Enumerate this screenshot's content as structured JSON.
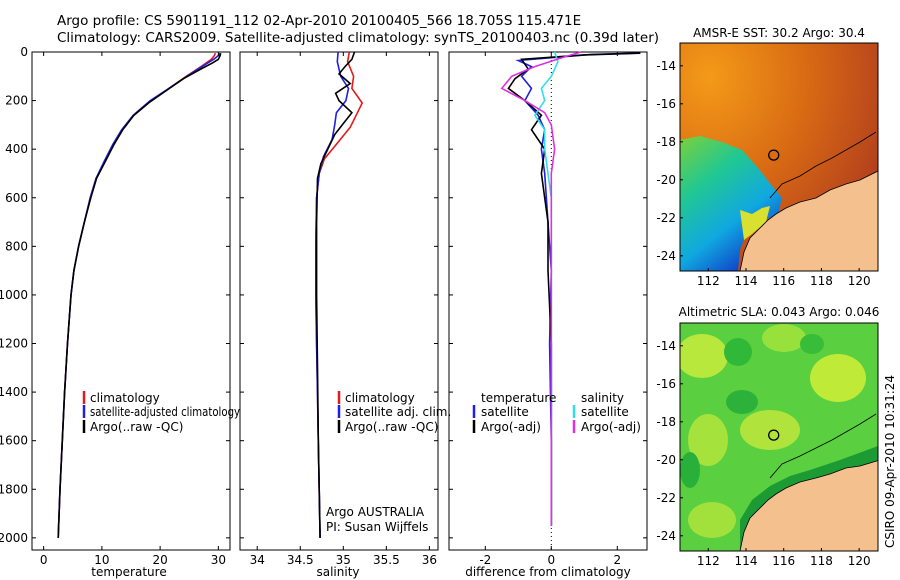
{
  "title_line1": "Argo profile: CS 5901191_112 02-Apr-2010 20100405_566 18.705S 115.471E",
  "title_line2": "Climatology: CARS2009. Satellite-adjusted climatology: synTS_20100403.nc (0.39d later)",
  "credit": "CSIRO 09-Apr-2010 10:31:24",
  "colors": {
    "climatology": "#e41a1c",
    "satellite": "#2020e0",
    "argo": "#000000",
    "sal_satellite": "#30e0e8",
    "sal_argo": "#e030e0"
  },
  "chart_data": [
    {
      "type": "line",
      "name": "temperature-profile",
      "xlabel": "temperature",
      "xlim": [
        -2,
        32
      ],
      "ylim": [
        2050,
        0
      ],
      "xticks": [
        "0",
        "10",
        "20",
        "30"
      ],
      "yticks": [
        "0",
        "200",
        "400",
        "600",
        "800",
        "1000",
        "1200",
        "1400",
        "1600",
        "1800",
        "2000"
      ],
      "legend": [
        "climatology",
        "satellite-adjusted climatology",
        "Argo(..raw -QC)"
      ],
      "series": [
        {
          "name": "climatology",
          "color": "#e41a1c",
          "points": [
            [
              29.5,
              5
            ],
            [
              29.3,
              15
            ],
            [
              28.8,
              30
            ],
            [
              27,
              60
            ],
            [
              24.5,
              100
            ],
            [
              21.5,
              150
            ],
            [
              18.5,
              200
            ],
            [
              15.5,
              260
            ],
            [
              13.5,
              320
            ],
            [
              12,
              380
            ],
            [
              10.5,
              450
            ],
            [
              9,
              520
            ],
            [
              8,
              600
            ],
            [
              7,
              700
            ],
            [
              6,
              800
            ],
            [
              5.2,
              900
            ],
            [
              4.7,
              1000
            ],
            [
              4.1,
              1200
            ],
            [
              3.6,
              1400
            ],
            [
              3.2,
              1600
            ],
            [
              2.8,
              1800
            ],
            [
              2.5,
              2000
            ]
          ]
        },
        {
          "name": "satellite-adjusted climatology",
          "color": "#2020e0",
          "points": [
            [
              30.3,
              5
            ],
            [
              30,
              15
            ],
            [
              29.2,
              30
            ],
            [
              27.2,
              60
            ],
            [
              24.6,
              100
            ],
            [
              21.5,
              150
            ],
            [
              18.3,
              200
            ],
            [
              15.4,
              260
            ],
            [
              13.4,
              320
            ],
            [
              11.9,
              380
            ],
            [
              10.4,
              450
            ],
            [
              9,
              520
            ],
            [
              8,
              600
            ],
            [
              7,
              700
            ],
            [
              6,
              800
            ],
            [
              5.2,
              900
            ],
            [
              4.7,
              1000
            ],
            [
              4.1,
              1200
            ],
            [
              3.6,
              1400
            ],
            [
              3.2,
              1600
            ],
            [
              2.8,
              1800
            ],
            [
              2.5,
              2000
            ]
          ]
        },
        {
          "name": "Argo(..raw -QC)",
          "color": "#000000",
          "points": [
            [
              30.4,
              5
            ],
            [
              30.3,
              15
            ],
            [
              30,
              30
            ],
            [
              29,
              45
            ],
            [
              27,
              70
            ],
            [
              24,
              110
            ],
            [
              21,
              160
            ],
            [
              18,
              210
            ],
            [
              15.5,
              260
            ],
            [
              13.6,
              320
            ],
            [
              12.1,
              380
            ],
            [
              10.6,
              450
            ],
            [
              9.1,
              520
            ],
            [
              8.1,
              600
            ],
            [
              7,
              700
            ],
            [
              6,
              800
            ],
            [
              5.2,
              900
            ],
            [
              4.7,
              1000
            ],
            [
              4.1,
              1200
            ],
            [
              3.6,
              1400
            ],
            [
              3.2,
              1600
            ],
            [
              2.8,
              1800
            ],
            [
              2.5,
              2000
            ]
          ]
        }
      ]
    },
    {
      "type": "line",
      "name": "salinity-profile",
      "xlabel": "salinity",
      "xlim": [
        33.8,
        36.1
      ],
      "ylim": [
        2050,
        0
      ],
      "xticks": [
        "34",
        "34.5",
        "35",
        "35.5",
        "36"
      ],
      "legend": [
        "climatology",
        "satellite adj. clim.",
        "Argo(..raw -QC)"
      ],
      "annotation": [
        "Argo AUSTRALIA",
        "PI: Susan Wijffels"
      ],
      "series": [
        {
          "name": "climatology",
          "color": "#e41a1c",
          "points": [
            [
              35.07,
              0
            ],
            [
              35.05,
              40
            ],
            [
              35.12,
              100
            ],
            [
              35.1,
              150
            ],
            [
              35.22,
              210
            ],
            [
              35.15,
              260
            ],
            [
              35.08,
              310
            ],
            [
              34.92,
              380
            ],
            [
              34.78,
              440
            ],
            [
              34.72,
              500
            ],
            [
              34.69,
              600
            ],
            [
              34.68,
              800
            ],
            [
              34.68,
              1000
            ],
            [
              34.69,
              1200
            ],
            [
              34.7,
              1400
            ],
            [
              34.71,
              1600
            ],
            [
              34.72,
              1800
            ],
            [
              34.73,
              2000
            ]
          ]
        },
        {
          "name": "satellite adj. clim.",
          "color": "#2020e0",
          "points": [
            [
              34.94,
              0
            ],
            [
              34.93,
              40
            ],
            [
              34.97,
              100
            ],
            [
              35.06,
              150
            ],
            [
              35.03,
              200
            ],
            [
              34.92,
              250
            ],
            [
              34.9,
              300
            ],
            [
              34.87,
              360
            ],
            [
              34.77,
              430
            ],
            [
              34.72,
              500
            ],
            [
              34.69,
              600
            ],
            [
              34.68,
              800
            ],
            [
              34.68,
              1000
            ],
            [
              34.69,
              1200
            ],
            [
              34.7,
              1400
            ],
            [
              34.71,
              1600
            ],
            [
              34.72,
              1800
            ],
            [
              34.73,
              2000
            ]
          ]
        },
        {
          "name": "Argo(..raw -QC)",
          "color": "#000000",
          "points": [
            [
              35.13,
              0
            ],
            [
              35.1,
              30
            ],
            [
              35.02,
              60
            ],
            [
              34.95,
              90
            ],
            [
              35.08,
              130
            ],
            [
              34.91,
              170
            ],
            [
              34.95,
              200
            ],
            [
              35.1,
              250
            ],
            [
              35.01,
              290
            ],
            [
              34.9,
              340
            ],
            [
              34.82,
              400
            ],
            [
              34.74,
              460
            ],
            [
              34.7,
              520
            ],
            [
              34.69,
              700
            ],
            [
              34.69,
              1000
            ],
            [
              34.7,
              1300
            ],
            [
              34.71,
              1600
            ],
            [
              34.72,
              1800
            ],
            [
              34.73,
              2000
            ]
          ]
        }
      ]
    },
    {
      "type": "line",
      "name": "difference-profile",
      "xlabel": "difference from climatology",
      "xlim": [
        -3.1,
        2.9
      ],
      "ylim": [
        2050,
        0
      ],
      "xticks": [
        "-2",
        "0",
        "2"
      ],
      "legend_temperature": {
        "heading": "temperature",
        "items": [
          "satellite",
          "Argo(-adj)"
        ]
      },
      "legend_salinity": {
        "heading": "salinity",
        "items": [
          "satellite",
          "Argo(-adj)"
        ]
      },
      "series": [
        {
          "name": "temperature satellite",
          "color": "#2020e0",
          "points": [
            [
              2.6,
              5
            ],
            [
              1.2,
              10
            ],
            [
              -1,
              35
            ],
            [
              -0.6,
              60
            ],
            [
              -0.9,
              100
            ],
            [
              -0.6,
              150
            ],
            [
              -0.8,
              200
            ],
            [
              -0.4,
              260
            ],
            [
              -0.2,
              320
            ],
            [
              -0.3,
              400
            ],
            [
              -0.2,
              500
            ],
            [
              -0.1,
              700
            ],
            [
              0,
              900
            ],
            [
              -0.05,
              1200
            ],
            [
              0,
              1600
            ],
            [
              0,
              1950
            ]
          ]
        },
        {
          "name": "temperature Argo(-adj)",
          "color": "#000000",
          "points": [
            [
              2.7,
              5
            ],
            [
              1,
              12
            ],
            [
              -0.9,
              30
            ],
            [
              -0.7,
              70
            ],
            [
              -1.1,
              110
            ],
            [
              -1.3,
              150
            ],
            [
              -0.8,
              200
            ],
            [
              -0.3,
              260
            ],
            [
              -0.6,
              320
            ],
            [
              -0.2,
              400
            ],
            [
              -0.3,
              500
            ],
            [
              -0.1,
              700
            ],
            [
              -0.1,
              900
            ],
            [
              0,
              1200
            ],
            [
              0,
              1600
            ],
            [
              0,
              1950
            ]
          ]
        },
        {
          "name": "salinity satellite",
          "color": "#30e0e8",
          "points": [
            [
              0.1,
              0
            ],
            [
              0.2,
              40
            ],
            [
              0,
              100
            ],
            [
              -0.3,
              150
            ],
            [
              -0.2,
              200
            ],
            [
              -0.5,
              260
            ],
            [
              -0.2,
              320
            ],
            [
              -0.2,
              400
            ],
            [
              -0.1,
              500
            ],
            [
              0,
              600
            ],
            [
              0,
              800
            ],
            [
              0,
              1000
            ],
            [
              0,
              1200
            ],
            [
              0,
              1500
            ],
            [
              0,
              1800
            ],
            [
              0,
              1950
            ]
          ]
        },
        {
          "name": "salinity Argo(-adj)",
          "color": "#e030e0",
          "points": [
            [
              0.9,
              0
            ],
            [
              0.4,
              20
            ],
            [
              -0.5,
              60
            ],
            [
              -1.2,
              100
            ],
            [
              -1.5,
              150
            ],
            [
              -0.8,
              200
            ],
            [
              -0.2,
              250
            ],
            [
              0,
              300
            ],
            [
              0.1,
              400
            ],
            [
              0,
              500
            ],
            [
              0,
              600
            ],
            [
              0,
              800
            ],
            [
              0,
              1000
            ],
            [
              0,
              1400
            ],
            [
              0,
              1800
            ],
            [
              0,
              1950
            ]
          ]
        }
      ]
    },
    {
      "type": "heatmap",
      "name": "sst-map",
      "title": "AMSR-E SST: 30.2  Argo: 30.4",
      "xlim": [
        110.5,
        121
      ],
      "ylim": [
        -24.8,
        -12.8
      ],
      "xticks": [
        "112",
        "114",
        "116",
        "118",
        "120"
      ],
      "yticks": [
        "-14",
        "-16",
        "-18",
        "-20",
        "-22",
        "-24"
      ],
      "marker": [
        115.47,
        -18.7
      ]
    },
    {
      "type": "heatmap",
      "name": "sla-map",
      "title": "Altimetric SLA: 0.043  Argo: 0.046",
      "xlim": [
        110.5,
        121
      ],
      "ylim": [
        -24.8,
        -12.8
      ],
      "xticks": [
        "112",
        "114",
        "116",
        "118",
        "120"
      ],
      "yticks": [
        "-14",
        "-16",
        "-18",
        "-20",
        "-22",
        "-24"
      ],
      "marker": [
        115.47,
        -18.7
      ]
    }
  ]
}
